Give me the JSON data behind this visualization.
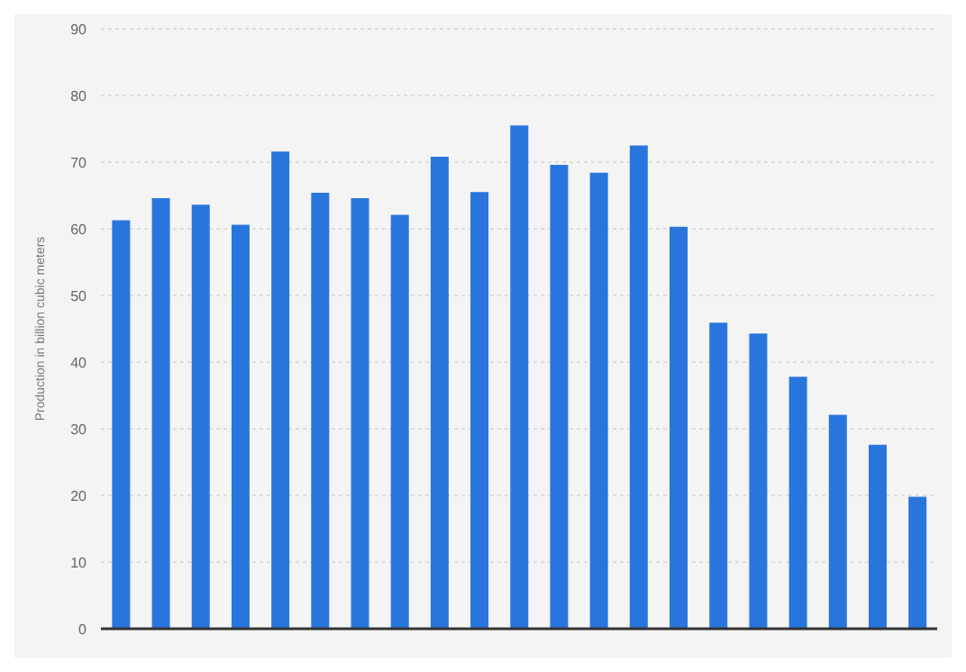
{
  "chart_data": {
    "type": "bar",
    "ylabel": "Production in billion cubic meters",
    "categories": [
      null,
      null,
      null,
      null,
      null,
      null,
      null,
      null,
      null,
      null,
      null,
      null,
      null,
      null,
      null,
      null,
      null,
      null,
      null,
      null,
      null
    ],
    "values": [
      61.3,
      64.6,
      63.6,
      60.6,
      71.6,
      65.4,
      64.6,
      62.1,
      70.8,
      65.5,
      75.5,
      69.6,
      68.4,
      72.5,
      60.3,
      45.9,
      44.3,
      37.8,
      32.1,
      27.6,
      19.8
    ],
    "color": "#2876dd",
    "ylim": [
      0,
      90
    ],
    "yticks": [
      0,
      10,
      20,
      30,
      40,
      50,
      60,
      70,
      80,
      90
    ],
    "grid": "y",
    "tick_labels": "y"
  }
}
